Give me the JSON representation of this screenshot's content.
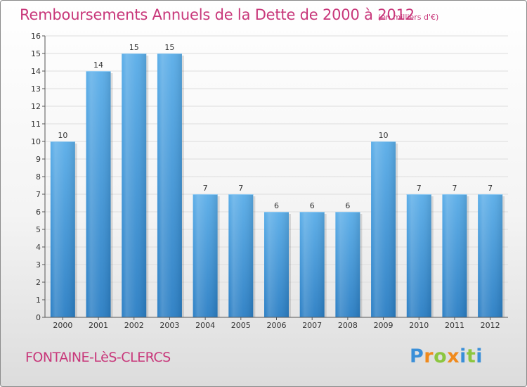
{
  "title": "Remboursements Annuels de la Dette de 2000 à 2012",
  "unit_note": "(en milliers d'€)",
  "city": "FONTAINE-LèS-CLERCS",
  "logo": {
    "text": "Proxiti",
    "letters": [
      {
        "char": "P",
        "color": "#3a8fd8"
      },
      {
        "char": "r",
        "color": "#f08a1c"
      },
      {
        "char": "o",
        "color": "#8cc63f"
      },
      {
        "char": "x",
        "color": "#f08a1c"
      },
      {
        "char": "i",
        "color": "#3a8fd8"
      },
      {
        "char": "t",
        "color": "#8cc63f"
      },
      {
        "char": "i",
        "color": "#3a8fd8"
      }
    ]
  },
  "colors": {
    "bar_top": "#5aade8",
    "bar_bottom": "#2a7ec4",
    "axis": "#555555",
    "grid": "#dddddd",
    "text": "#333333",
    "accent": "#c8377a"
  },
  "chart_data": {
    "type": "bar",
    "title": "Remboursements Annuels de la Dette de 2000 à 2012",
    "xlabel": "",
    "ylabel": "",
    "categories": [
      "2000",
      "2001",
      "2002",
      "2003",
      "2004",
      "2005",
      "2006",
      "2007",
      "2008",
      "2009",
      "2010",
      "2011",
      "2012"
    ],
    "values": [
      10,
      14,
      15,
      15,
      7,
      7,
      6,
      6,
      6,
      10,
      7,
      7,
      7
    ],
    "ylim": [
      0,
      16
    ],
    "yticks": [
      0,
      1,
      2,
      3,
      4,
      5,
      6,
      7,
      8,
      9,
      10,
      11,
      12,
      13,
      14,
      15,
      16
    ],
    "grid": true,
    "data_labels": true
  }
}
